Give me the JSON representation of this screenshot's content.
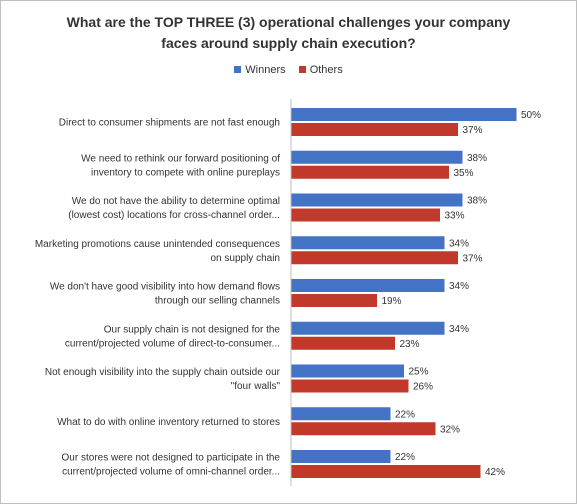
{
  "chart_data": {
    "type": "bar",
    "orientation": "horizontal",
    "title": "What are the TOP THREE (3) operational challenges your company faces around supply chain execution?",
    "title_lines": [
      "What are the TOP THREE (3) operational challenges your company",
      "faces around supply chain execution?"
    ],
    "legend_position": "top",
    "grid": false,
    "xlim": [
      0,
      50
    ],
    "value_suffix": "%",
    "categories": [
      [
        "Direct to consumer shipments are not fast enough"
      ],
      [
        "We need to rethink our forward positioning of",
        "inventory to compete with online pureplays"
      ],
      [
        "We do not have the ability to determine optimal",
        "(lowest cost) locations for cross-channel order..."
      ],
      [
        "Marketing promotions cause unintended consequences",
        "on supply chain"
      ],
      [
        "We don't have good visibility into how demand flows",
        "through our selling channels"
      ],
      [
        "Our supply chain is not designed for the",
        "current/projected volume of direct-to-consumer..."
      ],
      [
        "Not enough visibility into the supply chain outside our",
        "\"four walls\""
      ],
      [
        "What to do with online inventory returned to stores"
      ],
      [
        "Our stores were not designed to participate in the",
        "current/projected volume of omni-channel order..."
      ]
    ],
    "series": [
      {
        "name": "Winners",
        "color": "#4472c4",
        "values": [
          50,
          38,
          38,
          34,
          34,
          34,
          25,
          22,
          22
        ]
      },
      {
        "name": "Others",
        "color": "#c0392b",
        "values": [
          37,
          35,
          33,
          37,
          19,
          23,
          26,
          32,
          42
        ]
      }
    ]
  }
}
